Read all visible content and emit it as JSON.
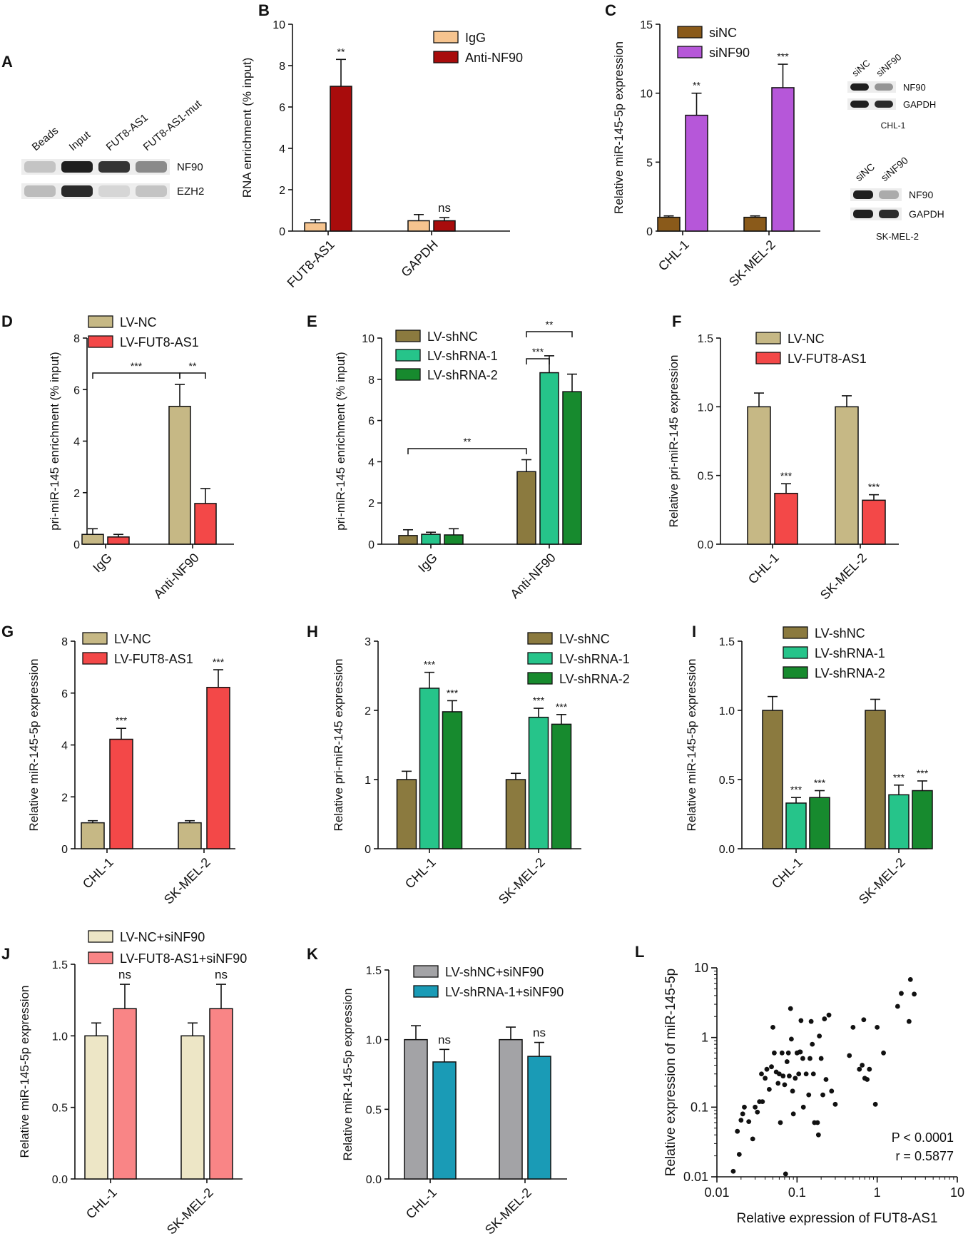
{
  "colors": {
    "igg": "#f6c48f",
    "anti_nf90": "#a80c0c",
    "sinc": "#8a5a1a",
    "sinf90": "#b657d9",
    "lv_nc": "#c6b885",
    "lv_fut8": "#f34848",
    "lv_shnc": "#8b7a3f",
    "lv_shrna1": "#26c48a",
    "lv_shrna2": "#178a2e",
    "lv_nc_sinf90": "#ede6c6",
    "lv_fut8_sinf90": "#f98586",
    "lv_shnc_sinf90": "#a3a3a6",
    "lv_shrna1_sinf90": "#1a9bb6",
    "scatter": "#111111",
    "axis": "#111111"
  },
  "panel_a": {
    "letter": "A",
    "lanes": [
      "Beads",
      "Input",
      "FUT8-AS1",
      "FUT8-AS1-mut"
    ],
    "rows": [
      {
        "label": "NF90",
        "intensities": [
          0.18,
          0.95,
          0.85,
          0.45
        ]
      },
      {
        "label": "EZH2",
        "intensities": [
          0.22,
          0.9,
          0.1,
          0.18
        ]
      }
    ]
  },
  "blot_c": [
    {
      "lanes": [
        "siNC",
        "siNF90"
      ],
      "rows": [
        {
          "label": "NF90",
          "intensities": [
            0.95,
            0.4
          ]
        },
        {
          "label": "GAPDH",
          "intensities": [
            0.95,
            0.9
          ]
        }
      ],
      "caption": "CHL-1"
    },
    {
      "lanes": [
        "siNC",
        "siNF90"
      ],
      "rows": [
        {
          "label": "NF90",
          "intensities": [
            0.95,
            0.3
          ]
        },
        {
          "label": "GAPDH",
          "intensities": [
            0.95,
            0.9
          ]
        }
      ],
      "caption": "SK-MEL-2"
    }
  ],
  "chart_data": [
    {
      "panel": "B",
      "type": "bar",
      "ylabel": "RNA enrichment (% input)",
      "ylim": [
        0,
        10
      ],
      "yticks": [
        0,
        2,
        4,
        6,
        8,
        10
      ],
      "categories": [
        "FUT8-AS1",
        "GAPDH"
      ],
      "series": [
        {
          "name": "IgG",
          "color": "#f6c48f",
          "values": [
            0.4,
            0.5
          ],
          "errors": [
            0.15,
            0.3
          ]
        },
        {
          "name": "Anti-NF90",
          "color": "#a80c0c",
          "values": [
            7.0,
            0.5
          ],
          "errors": [
            1.3,
            0.15
          ]
        }
      ],
      "annotations": [
        {
          "series": 1,
          "category": 0,
          "text": "**"
        },
        {
          "series": 1,
          "category": 1,
          "text": "ns"
        }
      ]
    },
    {
      "panel": "C",
      "type": "bar",
      "ylabel": "Relative miR-145-5p expression",
      "ylim": [
        0,
        15
      ],
      "yticks": [
        0,
        5,
        10,
        15
      ],
      "categories": [
        "CHL-1",
        "SK-MEL-2"
      ],
      "series": [
        {
          "name": "siNC",
          "color": "#8a5a1a",
          "values": [
            1.0,
            1.0
          ],
          "errors": [
            0.1,
            0.1
          ]
        },
        {
          "name": "siNF90",
          "color": "#b657d9",
          "values": [
            8.4,
            10.4
          ],
          "errors": [
            1.6,
            1.7
          ]
        }
      ],
      "annotations": [
        {
          "series": 1,
          "category": 0,
          "text": "**"
        },
        {
          "series": 1,
          "category": 1,
          "text": "***"
        }
      ]
    },
    {
      "panel": "D",
      "type": "bar",
      "ylabel": "pri-miR-145 enrichment (% input)",
      "ylim": [
        0,
        8
      ],
      "yticks": [
        0,
        2,
        4,
        6,
        8
      ],
      "categories": [
        "IgG",
        "Anti-NF90"
      ],
      "series": [
        {
          "name": "LV-NC",
          "color": "#c6b885",
          "values": [
            0.38,
            5.35
          ],
          "errors": [
            0.22,
            0.85
          ]
        },
        {
          "name": "LV-FUT8-AS1",
          "color": "#f34848",
          "values": [
            0.28,
            1.58
          ],
          "errors": [
            0.1,
            0.58
          ]
        }
      ],
      "brackets": [
        {
          "from": [
            0,
            0
          ],
          "to": [
            1,
            0
          ],
          "text": "***"
        },
        {
          "from": [
            1,
            0
          ],
          "to": [
            1,
            1
          ],
          "text": "**"
        }
      ]
    },
    {
      "panel": "E",
      "type": "bar",
      "ylabel": "pri-miR-145 enrichment (% input)",
      "ylim": [
        0,
        10
      ],
      "yticks": [
        0,
        2,
        4,
        6,
        8,
        10
      ],
      "categories": [
        "IgG",
        "Anti-NF90"
      ],
      "series": [
        {
          "name": "LV-shNC",
          "color": "#8b7a3f",
          "values": [
            0.42,
            3.52
          ],
          "errors": [
            0.28,
            0.58
          ]
        },
        {
          "name": "LV-shRNA-1",
          "color": "#26c48a",
          "values": [
            0.48,
            8.32
          ],
          "errors": [
            0.1,
            0.82
          ]
        },
        {
          "name": "LV-shRNA-2",
          "color": "#178a2e",
          "values": [
            0.45,
            7.4
          ],
          "errors": [
            0.3,
            0.85
          ]
        }
      ],
      "brackets": [
        {
          "from": [
            0,
            0
          ],
          "to": [
            1,
            0
          ],
          "text": "**"
        },
        {
          "from": [
            1,
            0
          ],
          "to": [
            1,
            1
          ],
          "text": "***"
        },
        {
          "from": [
            1,
            0
          ],
          "to": [
            1,
            2
          ],
          "text": "**"
        }
      ]
    },
    {
      "panel": "F",
      "type": "bar",
      "ylabel": "Relative pri-miR-145 expression",
      "ylim": [
        0,
        1.5
      ],
      "yticks": [
        "0.0",
        "0.5",
        "1.0",
        "1.5"
      ],
      "categories": [
        "CHL-1",
        "SK-MEL-2"
      ],
      "series": [
        {
          "name": "LV-NC",
          "color": "#c6b885",
          "values": [
            1.0,
            1.0
          ],
          "errors": [
            0.1,
            0.08
          ]
        },
        {
          "name": "LV-FUT8-AS1",
          "color": "#f34848",
          "values": [
            0.37,
            0.32
          ],
          "errors": [
            0.07,
            0.04
          ]
        }
      ],
      "annotations": [
        {
          "series": 1,
          "category": 0,
          "text": "***"
        },
        {
          "series": 1,
          "category": 1,
          "text": "***"
        }
      ]
    },
    {
      "panel": "G",
      "type": "bar",
      "ylabel": "Relative miR-145-5p expression",
      "ylim": [
        0,
        8
      ],
      "yticks": [
        0,
        2,
        4,
        6,
        8
      ],
      "categories": [
        "CHL-1",
        "SK-MEL-2"
      ],
      "series": [
        {
          "name": "LV-NC",
          "color": "#c6b885",
          "values": [
            1.0,
            1.0
          ],
          "errors": [
            0.08,
            0.08
          ]
        },
        {
          "name": "LV-FUT8-AS1",
          "color": "#f34848",
          "values": [
            4.22,
            6.22
          ],
          "errors": [
            0.42,
            0.68
          ]
        }
      ],
      "annotations": [
        {
          "series": 1,
          "category": 0,
          "text": "***"
        },
        {
          "series": 1,
          "category": 1,
          "text": "***"
        }
      ]
    },
    {
      "panel": "H",
      "type": "bar",
      "ylabel": "Relative pri-miR-145 expression",
      "ylim": [
        0,
        3
      ],
      "yticks": [
        0,
        1,
        2,
        3
      ],
      "categories": [
        "CHL-1",
        "SK-MEL-2"
      ],
      "series": [
        {
          "name": "LV-shNC",
          "color": "#8b7a3f",
          "values": [
            1.0,
            1.0
          ],
          "errors": [
            0.12,
            0.09
          ]
        },
        {
          "name": "LV-shRNA-1",
          "color": "#26c48a",
          "values": [
            2.32,
            1.9
          ],
          "errors": [
            0.23,
            0.13
          ]
        },
        {
          "name": "LV-shRNA-2",
          "color": "#178a2e",
          "values": [
            1.98,
            1.8
          ],
          "errors": [
            0.16,
            0.14
          ]
        }
      ],
      "annotations": [
        {
          "series": 1,
          "category": 0,
          "text": "***"
        },
        {
          "series": 2,
          "category": 0,
          "text": "***"
        },
        {
          "series": 1,
          "category": 1,
          "text": "***"
        },
        {
          "series": 2,
          "category": 1,
          "text": "***"
        }
      ]
    },
    {
      "panel": "I",
      "type": "bar",
      "ylabel": "Relative miR-145-5p expression",
      "ylim": [
        0,
        1.5
      ],
      "yticks": [
        "0.0",
        "0.5",
        "1.0",
        "1.5"
      ],
      "categories": [
        "CHL-1",
        "SK-MEL-2"
      ],
      "series": [
        {
          "name": "LV-shNC",
          "color": "#8b7a3f",
          "values": [
            1.0,
            1.0
          ],
          "errors": [
            0.1,
            0.08
          ]
        },
        {
          "name": "LV-shRNA-1",
          "color": "#26c48a",
          "values": [
            0.33,
            0.39
          ],
          "errors": [
            0.04,
            0.07
          ]
        },
        {
          "name": "LV-shRNA-2",
          "color": "#178a2e",
          "values": [
            0.37,
            0.42
          ],
          "errors": [
            0.05,
            0.07
          ]
        }
      ],
      "annotations": [
        {
          "series": 1,
          "category": 0,
          "text": "***"
        },
        {
          "series": 2,
          "category": 0,
          "text": "***"
        },
        {
          "series": 1,
          "category": 1,
          "text": "***"
        },
        {
          "series": 2,
          "category": 1,
          "text": "***"
        }
      ]
    },
    {
      "panel": "J",
      "type": "bar",
      "ylabel": "Relative miR-145-5p expression",
      "ylim": [
        0,
        1.5
      ],
      "yticks": [
        "0.0",
        "0.5",
        "1.0",
        "1.5"
      ],
      "categories": [
        "CHL-1",
        "SK-MEL-2"
      ],
      "series": [
        {
          "name": "LV-NC+siNF90",
          "color": "#ede6c6",
          "values": [
            1.0,
            1.0
          ],
          "errors": [
            0.09,
            0.09
          ]
        },
        {
          "name": "LV-FUT8-AS1+siNF90",
          "color": "#f98586",
          "values": [
            1.19,
            1.19
          ],
          "errors": [
            0.17,
            0.17
          ]
        }
      ],
      "annotations": [
        {
          "series": 1,
          "category": 0,
          "text": "ns"
        },
        {
          "series": 1,
          "category": 1,
          "text": "ns"
        }
      ]
    },
    {
      "panel": "K",
      "type": "bar",
      "ylabel": "Relative miR-145-5p expression",
      "ylim": [
        0,
        1.5
      ],
      "yticks": [
        "0.0",
        "0.5",
        "1.0",
        "1.5"
      ],
      "categories": [
        "CHL-1",
        "SK-MEL-2"
      ],
      "series": [
        {
          "name": "LV-shNC+siNF90",
          "color": "#a3a3a6",
          "values": [
            1.0,
            1.0
          ],
          "errors": [
            0.1,
            0.09
          ]
        },
        {
          "name": "LV-shRNA-1+siNF90",
          "color": "#1a9bb6",
          "values": [
            0.84,
            0.88
          ],
          "errors": [
            0.09,
            0.1
          ]
        }
      ],
      "annotations": [
        {
          "series": 1,
          "category": 0,
          "text": "ns"
        },
        {
          "series": 1,
          "category": 1,
          "text": "ns"
        }
      ]
    },
    {
      "panel": "L",
      "type": "scatter",
      "xscale": "log",
      "yscale": "log",
      "xlabel": "Relative expression of FUT8-AS1",
      "ylabel": "Relative expression of miR-145-5p",
      "xlim": [
        0.01,
        10
      ],
      "ylim": [
        0.01,
        10
      ],
      "xticks": [
        "0.01",
        "0.1",
        "1",
        "10"
      ],
      "yticks": [
        "0.01",
        "0.1",
        "1",
        "10"
      ],
      "stats": {
        "p": "P < 0.0001",
        "r": "r = 0.5877"
      },
      "points": [
        [
          0.016,
          0.012
        ],
        [
          0.018,
          0.045
        ],
        [
          0.019,
          0.021
        ],
        [
          0.02,
          0.065
        ],
        [
          0.021,
          0.08
        ],
        [
          0.022,
          0.1
        ],
        [
          0.025,
          0.062
        ],
        [
          0.028,
          0.035
        ],
        [
          0.03,
          0.1
        ],
        [
          0.032,
          0.085
        ],
        [
          0.034,
          0.12
        ],
        [
          0.036,
          0.3
        ],
        [
          0.037,
          0.12
        ],
        [
          0.04,
          0.26
        ],
        [
          0.042,
          0.35
        ],
        [
          0.045,
          0.18
        ],
        [
          0.048,
          0.38
        ],
        [
          0.05,
          1.4
        ],
        [
          0.052,
          0.6
        ],
        [
          0.055,
          0.32
        ],
        [
          0.058,
          0.22
        ],
        [
          0.06,
          0.3
        ],
        [
          0.062,
          0.06
        ],
        [
          0.065,
          0.6
        ],
        [
          0.067,
          0.28
        ],
        [
          0.07,
          0.21
        ],
        [
          0.072,
          0.011
        ],
        [
          0.075,
          0.45
        ],
        [
          0.078,
          0.6
        ],
        [
          0.08,
          0.28
        ],
        [
          0.083,
          2.6
        ],
        [
          0.085,
          0.95
        ],
        [
          0.088,
          0.17
        ],
        [
          0.09,
          0.08
        ],
        [
          0.095,
          0.26
        ],
        [
          0.1,
          0.6
        ],
        [
          0.105,
          0.3
        ],
        [
          0.108,
          0.62
        ],
        [
          0.11,
          0.62
        ],
        [
          0.112,
          1.75
        ],
        [
          0.118,
          0.5
        ],
        [
          0.12,
          0.1
        ],
        [
          0.13,
          0.3
        ],
        [
          0.14,
          0.15
        ],
        [
          0.145,
          0.5
        ],
        [
          0.15,
          1.7
        ],
        [
          0.155,
          0.8
        ],
        [
          0.16,
          0.3
        ],
        [
          0.165,
          0.06
        ],
        [
          0.18,
          0.06
        ],
        [
          0.185,
          0.04
        ],
        [
          0.19,
          1.05
        ],
        [
          0.2,
          0.5
        ],
        [
          0.21,
          0.15
        ],
        [
          0.22,
          1.85
        ],
        [
          0.23,
          0.25
        ],
        [
          0.25,
          2.1
        ],
        [
          0.27,
          0.17
        ],
        [
          0.3,
          0.11
        ],
        [
          0.45,
          0.55
        ],
        [
          0.5,
          1.4
        ],
        [
          0.6,
          0.35
        ],
        [
          0.65,
          0.4
        ],
        [
          0.68,
          1.8
        ],
        [
          0.7,
          0.26
        ],
        [
          0.75,
          0.25
        ],
        [
          0.8,
          0.35
        ],
        [
          0.95,
          0.11
        ],
        [
          1.0,
          1.4
        ],
        [
          1.2,
          0.6
        ],
        [
          1.8,
          2.8
        ],
        [
          2.0,
          4.3
        ],
        [
          2.5,
          1.7
        ],
        [
          2.6,
          6.8
        ],
        [
          2.9,
          4.2
        ]
      ]
    }
  ]
}
